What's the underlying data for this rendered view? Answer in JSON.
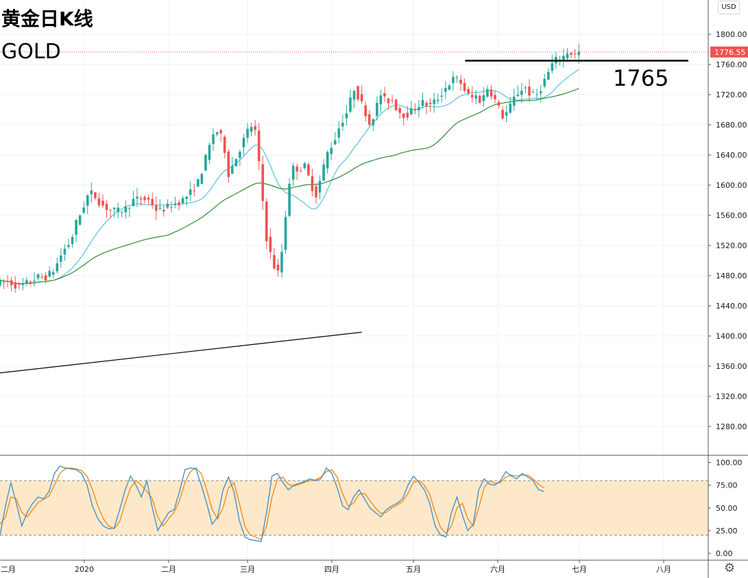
{
  "title_line1": "黄金日K线",
  "title_line2": "GOLD",
  "currency": "USD",
  "settings_icon": "gear-icon",
  "colors": {
    "up": "#26a69a",
    "down": "#ef5350",
    "ma_fast": "#5bc0de",
    "ma_slow": "#2e8b2e",
    "price_line": "#ef5350",
    "stoch_k": "#4a90c8",
    "stoch_d": "#f08c1e",
    "stoch_band": "#fde9c9"
  },
  "chart_data": {
    "type": "candlestick",
    "instrument": "GOLD",
    "price_axis": {
      "min": 1240,
      "max": 1840,
      "ticks": [
        "1280.00",
        "1320.00",
        "1360.00",
        "1400.00",
        "1440.00",
        "1480.00",
        "1520.00",
        "1560.00",
        "1600.00",
        "1640.00",
        "1680.00",
        "1720.00",
        "1760.00",
        "1800.00"
      ]
    },
    "last_price": 1776.55,
    "last_price_label": "1776.55",
    "time_axis_labels": [
      {
        "label": "二月",
        "day": -125
      },
      {
        "label": "2020",
        "day": 0
      },
      {
        "label": "二月",
        "day": 31
      },
      {
        "label": "三月",
        "day": 60
      },
      {
        "label": "四月",
        "day": 91
      },
      {
        "label": "五月",
        "day": 121
      },
      {
        "label": "六月",
        "day": 152
      },
      {
        "label": "七月",
        "day": 182
      },
      {
        "label": "八月",
        "day": 213
      }
    ],
    "horizontal_level": {
      "value": 1765,
      "label": "1765"
    },
    "trendline": {
      "start": {
        "day": -31,
        "price": 1351
      },
      "end": {
        "day": 102,
        "price": 1405
      }
    },
    "stochastic": {
      "min": 0,
      "max": 100,
      "ticks": [
        "0.00",
        "25.00",
        "50.00",
        "75.00",
        "100.00"
      ],
      "band": [
        20,
        80
      ],
      "k": [
        [
          -31,
          20
        ],
        [
          -29,
          52
        ],
        [
          -27,
          78
        ],
        [
          -25,
          55
        ],
        [
          -23,
          30
        ],
        [
          -21,
          45
        ],
        [
          -19,
          55
        ],
        [
          -17,
          62
        ],
        [
          -15,
          60
        ],
        [
          -13,
          68
        ],
        [
          -11,
          88
        ],
        [
          -9,
          96
        ],
        [
          -7,
          94
        ],
        [
          -5,
          93
        ],
        [
          -3,
          92
        ],
        [
          -1,
          88
        ],
        [
          1,
          75
        ],
        [
          3,
          52
        ],
        [
          5,
          38
        ],
        [
          7,
          30
        ],
        [
          9,
          27
        ],
        [
          11,
          28
        ],
        [
          13,
          48
        ],
        [
          15,
          70
        ],
        [
          17,
          85
        ],
        [
          19,
          75
        ],
        [
          21,
          62
        ],
        [
          23,
          80
        ],
        [
          25,
          50
        ],
        [
          27,
          25
        ],
        [
          29,
          35
        ],
        [
          31,
          45
        ],
        [
          33,
          48
        ],
        [
          35,
          68
        ],
        [
          37,
          92
        ],
        [
          39,
          94
        ],
        [
          41,
          93
        ],
        [
          43,
          75
        ],
        [
          45,
          55
        ],
        [
          47,
          32
        ],
        [
          49,
          40
        ],
        [
          51,
          70
        ],
        [
          53,
          84
        ],
        [
          55,
          68
        ],
        [
          57,
          36
        ],
        [
          59,
          18
        ],
        [
          61,
          15
        ],
        [
          63,
          14
        ],
        [
          65,
          13
        ],
        [
          67,
          45
        ],
        [
          69,
          85
        ],
        [
          71,
          88
        ],
        [
          73,
          78
        ],
        [
          75,
          70
        ],
        [
          77,
          75
        ],
        [
          79,
          77
        ],
        [
          81,
          79
        ],
        [
          83,
          82
        ],
        [
          85,
          80
        ],
        [
          87,
          82
        ],
        [
          89,
          94
        ],
        [
          91,
          88
        ],
        [
          93,
          72
        ],
        [
          95,
          52
        ],
        [
          97,
          48
        ],
        [
          99,
          62
        ],
        [
          101,
          70
        ],
        [
          103,
          60
        ],
        [
          105,
          50
        ],
        [
          107,
          45
        ],
        [
          109,
          40
        ],
        [
          111,
          48
        ],
        [
          113,
          52
        ],
        [
          115,
          55
        ],
        [
          117,
          60
        ],
        [
          119,
          75
        ],
        [
          121,
          85
        ],
        [
          123,
          78
        ],
        [
          125,
          70
        ],
        [
          127,
          55
        ],
        [
          129,
          30
        ],
        [
          131,
          20
        ],
        [
          133,
          18
        ],
        [
          135,
          45
        ],
        [
          137,
          62
        ],
        [
          139,
          42
        ],
        [
          141,
          25
        ],
        [
          143,
          32
        ],
        [
          145,
          70
        ],
        [
          147,
          82
        ],
        [
          149,
          76
        ],
        [
          151,
          75
        ],
        [
          153,
          80
        ],
        [
          155,
          90
        ],
        [
          157,
          85
        ],
        [
          159,
          82
        ],
        [
          161,
          88
        ],
        [
          163,
          84
        ],
        [
          165,
          80
        ],
        [
          167,
          70
        ],
        [
          169,
          68
        ]
      ],
      "d": [
        [
          -31,
          32
        ],
        [
          -29,
          40
        ],
        [
          -27,
          62
        ],
        [
          -25,
          60
        ],
        [
          -23,
          45
        ],
        [
          -21,
          40
        ],
        [
          -19,
          48
        ],
        [
          -17,
          56
        ],
        [
          -15,
          59
        ],
        [
          -13,
          63
        ],
        [
          -11,
          75
        ],
        [
          -9,
          88
        ],
        [
          -7,
          93
        ],
        [
          -5,
          94
        ],
        [
          -3,
          93
        ],
        [
          -1,
          91
        ],
        [
          1,
          85
        ],
        [
          3,
          70
        ],
        [
          5,
          52
        ],
        [
          7,
          38
        ],
        [
          9,
          30
        ],
        [
          11,
          27
        ],
        [
          13,
          35
        ],
        [
          15,
          55
        ],
        [
          17,
          72
        ],
        [
          19,
          80
        ],
        [
          21,
          75
        ],
        [
          23,
          68
        ],
        [
          25,
          60
        ],
        [
          27,
          40
        ],
        [
          29,
          30
        ],
        [
          31,
          38
        ],
        [
          33,
          45
        ],
        [
          35,
          58
        ],
        [
          37,
          78
        ],
        [
          39,
          90
        ],
        [
          41,
          94
        ],
        [
          43,
          88
        ],
        [
          45,
          70
        ],
        [
          47,
          48
        ],
        [
          49,
          38
        ],
        [
          51,
          50
        ],
        [
          53,
          72
        ],
        [
          55,
          78
        ],
        [
          57,
          55
        ],
        [
          59,
          30
        ],
        [
          61,
          20
        ],
        [
          63,
          18
        ],
        [
          65,
          15
        ],
        [
          67,
          30
        ],
        [
          69,
          62
        ],
        [
          71,
          82
        ],
        [
          73,
          84
        ],
        [
          75,
          76
        ],
        [
          77,
          74
        ],
        [
          79,
          76
        ],
        [
          81,
          78
        ],
        [
          83,
          80
        ],
        [
          85,
          81
        ],
        [
          87,
          84
        ],
        [
          89,
          90
        ],
        [
          91,
          92
        ],
        [
          93,
          84
        ],
        [
          95,
          65
        ],
        [
          97,
          52
        ],
        [
          99,
          55
        ],
        [
          101,
          65
        ],
        [
          103,
          66
        ],
        [
          105,
          58
        ],
        [
          107,
          50
        ],
        [
          109,
          44
        ],
        [
          111,
          45
        ],
        [
          113,
          50
        ],
        [
          115,
          53
        ],
        [
          117,
          57
        ],
        [
          119,
          66
        ],
        [
          121,
          78
        ],
        [
          123,
          80
        ],
        [
          125,
          75
        ],
        [
          127,
          65
        ],
        [
          129,
          45
        ],
        [
          131,
          28
        ],
        [
          133,
          22
        ],
        [
          135,
          30
        ],
        [
          137,
          50
        ],
        [
          139,
          55
        ],
        [
          141,
          38
        ],
        [
          143,
          30
        ],
        [
          145,
          50
        ],
        [
          147,
          72
        ],
        [
          149,
          80
        ],
        [
          151,
          77
        ],
        [
          153,
          78
        ],
        [
          155,
          84
        ],
        [
          157,
          86
        ],
        [
          159,
          85
        ],
        [
          161,
          86
        ],
        [
          163,
          86
        ],
        [
          165,
          82
        ],
        [
          167,
          76
        ],
        [
          169,
          72
        ]
      ]
    }
  }
}
